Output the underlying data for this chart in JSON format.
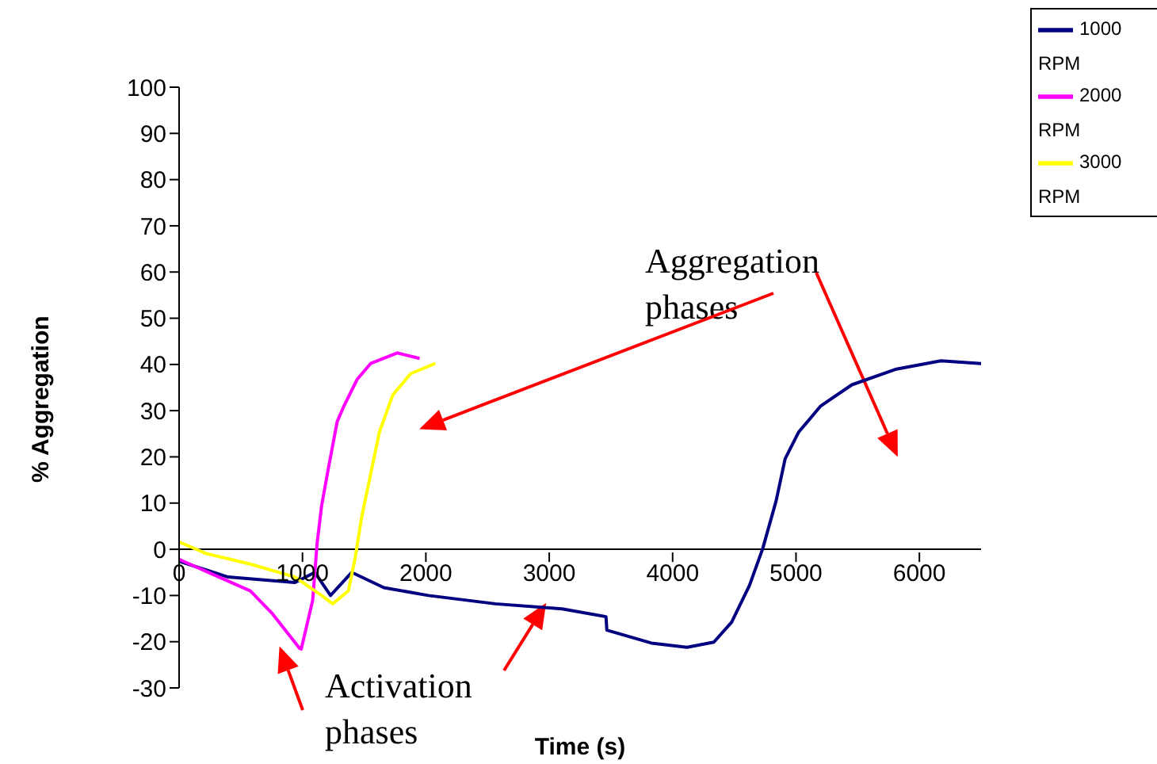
{
  "chart_data": {
    "type": "line",
    "xlabel": "Time (s)",
    "ylabel": "% Aggregation",
    "xlim": [
      0,
      6500
    ],
    "xticks": [
      0,
      1000,
      2000,
      3000,
      4000,
      5000,
      6000
    ],
    "ylim": [
      -30,
      100
    ],
    "yticks": [
      -30,
      -20,
      -10,
      0,
      10,
      20,
      30,
      40,
      50,
      60,
      70,
      80,
      90,
      100
    ],
    "legend": "top right",
    "marker": "none",
    "line_style": "solid",
    "annotations": [
      "Aggregation phases",
      "Activation phases"
    ],
    "series": [
      {
        "name": "1000 RPM",
        "color": "#000080",
        "x": [
          0,
          397,
          939,
          1100,
          1227,
          1400,
          1660,
          2021,
          2563,
          3104,
          3460,
          3467,
          3828,
          4117,
          4334,
          4478,
          4623,
          4731,
          4839,
          4912,
          5020,
          5200,
          5453,
          5814,
          6175,
          6500
        ],
        "values": [
          -2.6,
          -6,
          -7.2,
          -5,
          -10,
          -5,
          -8.3,
          -10,
          -11.8,
          -12.9,
          -14.6,
          -17.5,
          -20.3,
          -21.2,
          -20.1,
          -15.8,
          -7.8,
          0.2,
          10.5,
          19.6,
          25.3,
          31,
          35.6,
          39,
          40.8,
          40.2
        ]
      },
      {
        "name": "2000 RPM",
        "color": "#ff00ff",
        "x": [
          0,
          578,
          758,
          975,
          990,
          1083,
          1119,
          1155,
          1209,
          1281,
          1336,
          1444,
          1552,
          1768,
          1949
        ],
        "values": [
          -2.2,
          -9,
          -14,
          -21.4,
          -21.6,
          -11,
          1.4,
          9.4,
          17.4,
          27.6,
          31,
          36.8,
          40.2,
          42.5,
          41.3
        ]
      },
      {
        "name": "3000 RPM",
        "color": "#ffff00",
        "x": [
          0,
          217,
          578,
          939,
          1155,
          1245,
          1372,
          1426,
          1480,
          1552,
          1624,
          1732,
          1877,
          2076
        ],
        "values": [
          1.6,
          -0.9,
          -3.2,
          -6,
          -10,
          -11.8,
          -9,
          -2,
          7,
          16.2,
          25.4,
          33.4,
          38,
          40.2
        ]
      }
    ]
  }
}
